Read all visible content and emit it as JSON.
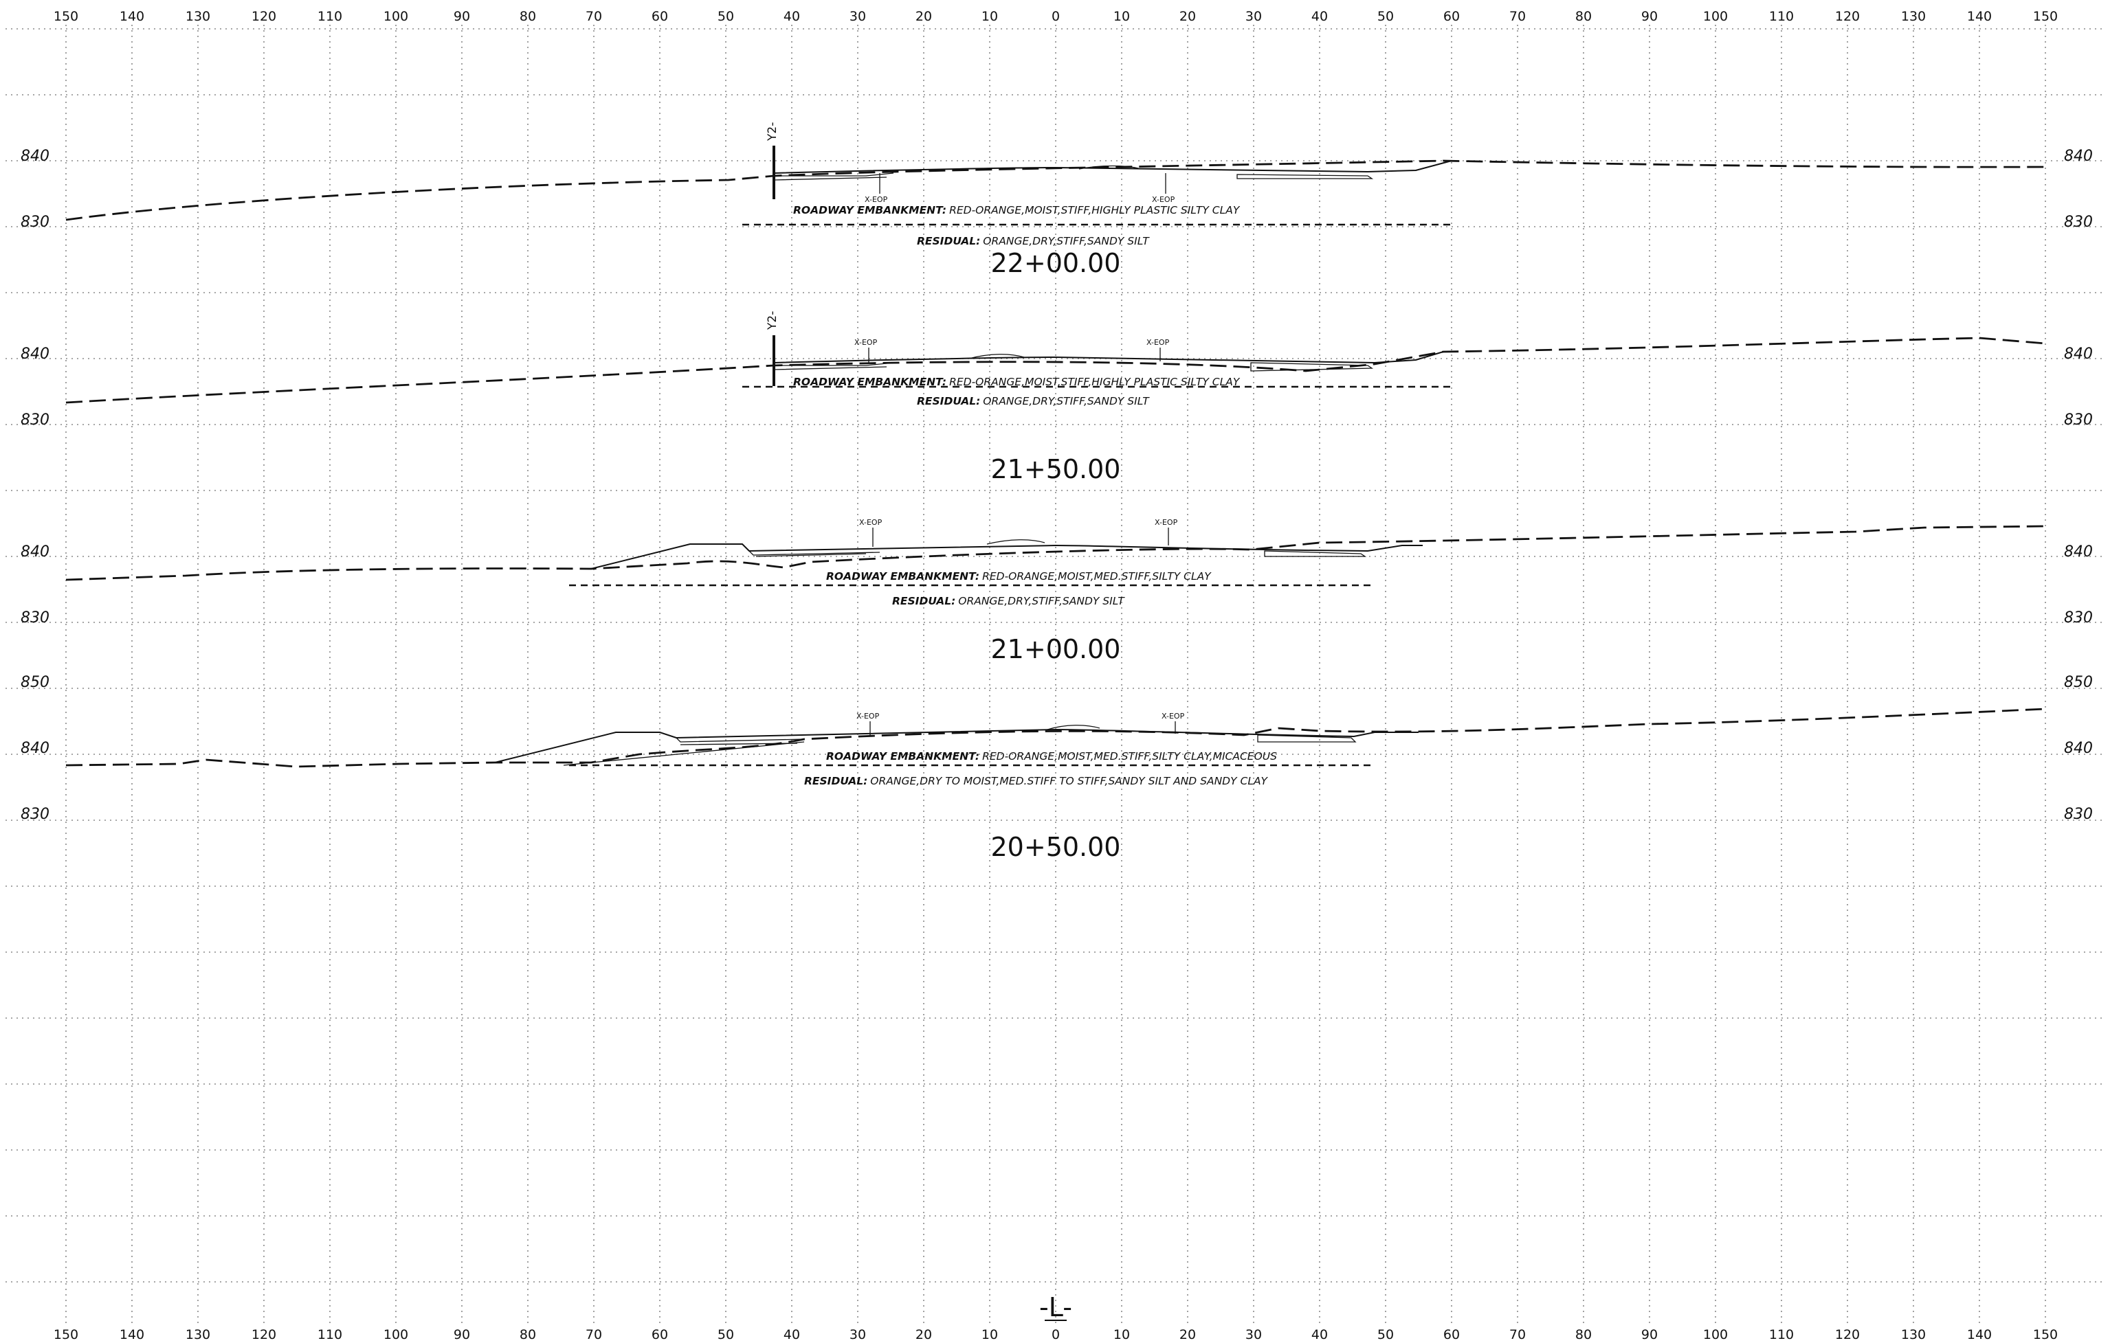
{
  "offsets_top": [
    "150",
    "140",
    "130",
    "120",
    "110",
    "100",
    "90",
    "80",
    "70",
    "60",
    "50",
    "40",
    "30",
    "20",
    "10",
    "0",
    "10",
    "20",
    "30",
    "40",
    "50",
    "60",
    "70",
    "80",
    "90",
    "100",
    "110",
    "120",
    "130",
    "140",
    "150"
  ],
  "offsets_bottom": [
    "150",
    "140",
    "130",
    "120",
    "110",
    "100",
    "90",
    "80",
    "70",
    "60",
    "50",
    "40",
    "30",
    "20",
    "10",
    "0",
    "10",
    "20",
    "30",
    "40",
    "50",
    "60",
    "70",
    "80",
    "90",
    "100",
    "110",
    "120",
    "130",
    "140",
    "150"
  ],
  "alignment_label": "-L-",
  "sections": [
    {
      "station": "22+00.00",
      "elevations": [
        "840",
        "830"
      ],
      "eop_left": "X-EOP",
      "eop_right": "X-EOP",
      "baseline_label": "Y2-",
      "embankment_key": "ROADWAY EMBANKMENT:",
      "embankment_desc": "RED-ORANGE,MOIST,STIFF,HIGHLY PLASTIC SILTY CLAY",
      "residual_key": "RESIDUAL:",
      "residual_desc": "ORANGE,DRY,STIFF,SANDY SILT"
    },
    {
      "station": "21+50.00",
      "elevations": [
        "840",
        "830"
      ],
      "eop_left": "X-EOP",
      "eop_right": "X-EOP",
      "baseline_label": "Y2-",
      "embankment_key": "ROADWAY EMBANKMENT:",
      "embankment_desc": "RED-ORANGE,MOIST,STIFF,HIGHLY PLASTIC SILTY CLAY",
      "residual_key": "RESIDUAL:",
      "residual_desc": "ORANGE,DRY,STIFF,SANDY SILT"
    },
    {
      "station": "21+00.00",
      "elevations": [
        "840",
        "830"
      ],
      "eop_left": "X-EOP",
      "eop_right": "X-EOP",
      "embankment_key": "ROADWAY EMBANKMENT:",
      "embankment_desc": "RED-ORANGE,MOIST,MED.STIFF,SILTY CLAY",
      "residual_key": "RESIDUAL:",
      "residual_desc": "ORANGE,DRY,STIFF,SANDY SILT"
    },
    {
      "station": "20+50.00",
      "elevations": [
        "850",
        "840",
        "830"
      ],
      "eop_left": "X-EOP",
      "eop_right": "X-EOP",
      "embankment_key": "ROADWAY EMBANKMENT:",
      "embankment_desc": "RED-ORANGE,MOIST,MED.STIFF,SILTY CLAY,MICACEOUS",
      "residual_key": "RESIDUAL:",
      "residual_desc": "ORANGE,DRY TO MOIST,MED.STIFF TO STIFF,SANDY SILT AND SANDY CLAY"
    }
  ]
}
